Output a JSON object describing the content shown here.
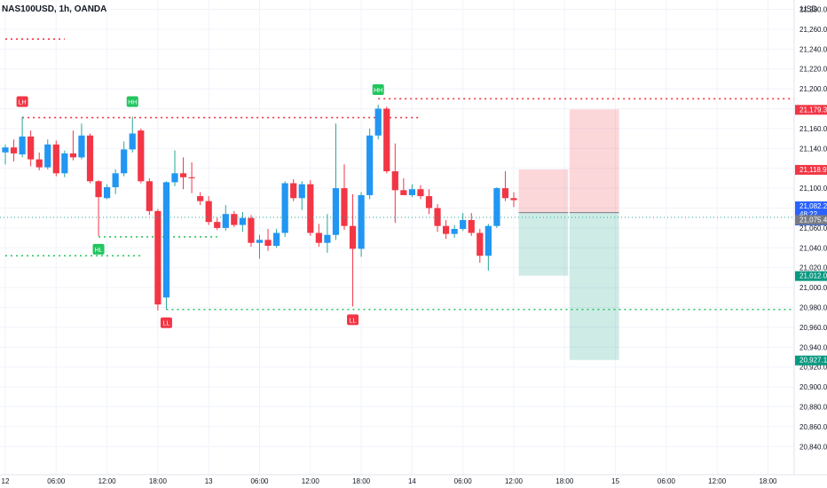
{
  "header": {
    "symbol_text": "NAS100USD, 1h, OANDA"
  },
  "price_axis": {
    "currency": "USD",
    "ticks": [
      "21,280.0",
      "21,260.0",
      "21,240.0",
      "21,220.0",
      "21,200.0",
      "21,180.0",
      "21,160.0",
      "21,140.0",
      "21,120.0",
      "21,100.0",
      "21,080.0",
      "21,060.0",
      "21,040.0",
      "21,020.0",
      "21,000.0",
      "20,980.0",
      "20,960.0",
      "20,940.0",
      "20,920.0",
      "20,900.0",
      "20,880.0",
      "20,860.0",
      "20,840.0"
    ]
  },
  "time_axis": {
    "ticks": [
      {
        "label": "12",
        "bar": 0
      },
      {
        "label": "06:00",
        "bar": 6
      },
      {
        "label": "12:00",
        "bar": 12
      },
      {
        "label": "18:00",
        "bar": 18
      },
      {
        "label": "13",
        "bar": 24
      },
      {
        "label": "06:00",
        "bar": 30
      },
      {
        "label": "12:00",
        "bar": 36
      },
      {
        "label": "18:00",
        "bar": 42
      },
      {
        "label": "14",
        "bar": 48
      },
      {
        "label": "06:00",
        "bar": 54
      },
      {
        "label": "12:00",
        "bar": 60
      },
      {
        "label": "18:00",
        "bar": 66
      },
      {
        "label": "15",
        "bar": 72
      },
      {
        "label": "06:00",
        "bar": 78
      },
      {
        "label": "12:00",
        "bar": 84
      },
      {
        "label": "18:00",
        "bar": 90
      }
    ]
  },
  "price_badges": [
    {
      "text": "21,179.3",
      "price": 21179.3,
      "color": "#f23645",
      "type": "single"
    },
    {
      "text": "21,118.9",
      "price": 21118.9,
      "color": "#f23645",
      "type": "single"
    },
    {
      "text": "21,082.2",
      "sub": "48:22",
      "sub2": "21,075.4",
      "price": 21082.2,
      "color": "#2962ff",
      "type": "current"
    },
    {
      "text": "21,075.4",
      "price": 21068.5,
      "color": "#787b86",
      "type": "single"
    },
    {
      "text": "21,012.0",
      "price": 21012.0,
      "color": "#089981",
      "type": "single"
    },
    {
      "text": "20,927.1",
      "price": 20927.1,
      "color": "#089981",
      "type": "single"
    }
  ],
  "colors": {
    "up": "#26a69a",
    "down": "#f23645",
    "bull_body": "#2196f3",
    "bear_body": "#f23645",
    "grid": "#f0f3fa",
    "axis_text": "#131722"
  },
  "chart_data": {
    "type": "candlestick",
    "symbol": "NAS100USD",
    "interval": "1h",
    "source": "OANDA",
    "candles": [
      {
        "o": 21136,
        "h": 21144,
        "l": 21124,
        "c": 21141
      },
      {
        "o": 21141,
        "h": 21149,
        "l": 21127,
        "c": 21135
      },
      {
        "o": 21134,
        "h": 21172,
        "l": 21131,
        "c": 21152
      },
      {
        "o": 21152,
        "h": 21158,
        "l": 21122,
        "c": 21129
      },
      {
        "o": 21129,
        "h": 21136,
        "l": 21118,
        "c": 21121
      },
      {
        "o": 21121,
        "h": 21149,
        "l": 21119,
        "c": 21144
      },
      {
        "o": 21144,
        "h": 21148,
        "l": 21112,
        "c": 21115
      },
      {
        "o": 21115,
        "h": 21138,
        "l": 21111,
        "c": 21135
      },
      {
        "o": 21135,
        "h": 21158,
        "l": 21128,
        "c": 21131
      },
      {
        "o": 21131,
        "h": 21165,
        "l": 21129,
        "c": 21153
      },
      {
        "o": 21153,
        "h": 21155,
        "l": 21105,
        "c": 21107
      },
      {
        "o": 21107,
        "h": 21108,
        "l": 21052,
        "c": 21091
      },
      {
        "o": 21090,
        "h": 21104,
        "l": 21089,
        "c": 21101
      },
      {
        "o": 21101,
        "h": 21119,
        "l": 21094,
        "c": 21115
      },
      {
        "o": 21115,
        "h": 21147,
        "l": 21112,
        "c": 21139
      },
      {
        "o": 21139,
        "h": 21172,
        "l": 21136,
        "c": 21155
      },
      {
        "o": 21158,
        "h": 21160,
        "l": 21105,
        "c": 21107
      },
      {
        "o": 21107,
        "h": 21110,
        "l": 21073,
        "c": 21077
      },
      {
        "o": 21077,
        "h": 21079,
        "l": 20977,
        "c": 20983
      },
      {
        "o": 20990,
        "h": 21107,
        "l": 20978,
        "c": 21106
      },
      {
        "o": 21106,
        "h": 21138,
        "l": 21102,
        "c": 21115
      },
      {
        "o": 21115,
        "h": 21131,
        "l": 21099,
        "c": 21111
      },
      {
        "o": 21111,
        "h": 21126,
        "l": 21095,
        "c": 21110
      },
      {
        "o": 21092,
        "h": 21096,
        "l": 21083,
        "c": 21087
      },
      {
        "o": 21087,
        "h": 21092,
        "l": 21063,
        "c": 21066
      },
      {
        "o": 21066,
        "h": 21070,
        "l": 21058,
        "c": 21060
      },
      {
        "o": 21060,
        "h": 21083,
        "l": 21057,
        "c": 21074
      },
      {
        "o": 21074,
        "h": 21077,
        "l": 21061,
        "c": 21063
      },
      {
        "o": 21063,
        "h": 21076,
        "l": 21056,
        "c": 21070
      },
      {
        "o": 21070,
        "h": 21073,
        "l": 21041,
        "c": 21045
      },
      {
        "o": 21045,
        "h": 21053,
        "l": 21029,
        "c": 21048
      },
      {
        "o": 21048,
        "h": 21059,
        "l": 21037,
        "c": 21042
      },
      {
        "o": 21042,
        "h": 21059,
        "l": 21040,
        "c": 21055
      },
      {
        "o": 21055,
        "h": 21107,
        "l": 21051,
        "c": 21105
      },
      {
        "o": 21105,
        "h": 21109,
        "l": 21087,
        "c": 21090
      },
      {
        "o": 21090,
        "h": 21107,
        "l": 21078,
        "c": 21104
      },
      {
        "o": 21104,
        "h": 21108,
        "l": 21052,
        "c": 21055
      },
      {
        "o": 21055,
        "h": 21064,
        "l": 21041,
        "c": 21045
      },
      {
        "o": 21045,
        "h": 21074,
        "l": 21035,
        "c": 21053
      },
      {
        "o": 21053,
        "h": 21165,
        "l": 21048,
        "c": 21100
      },
      {
        "o": 21100,
        "h": 21124,
        "l": 21058,
        "c": 21062
      },
      {
        "o": 21062,
        "h": 21094,
        "l": 20981,
        "c": 21039
      },
      {
        "o": 21039,
        "h": 21096,
        "l": 21031,
        "c": 21093
      },
      {
        "o": 21093,
        "h": 21160,
        "l": 21089,
        "c": 21153
      },
      {
        "o": 21153,
        "h": 21184,
        "l": 21149,
        "c": 21180
      },
      {
        "o": 21180,
        "h": 21182,
        "l": 21115,
        "c": 21117
      },
      {
        "o": 21117,
        "h": 21145,
        "l": 21065,
        "c": 21098
      },
      {
        "o": 21098,
        "h": 21110,
        "l": 21094,
        "c": 21093
      },
      {
        "o": 21093,
        "h": 21104,
        "l": 21091,
        "c": 21099
      },
      {
        "o": 21099,
        "h": 21103,
        "l": 21089,
        "c": 21092
      },
      {
        "o": 21092,
        "h": 21099,
        "l": 21074,
        "c": 21080
      },
      {
        "o": 21080,
        "h": 21084,
        "l": 21056,
        "c": 21062
      },
      {
        "o": 21062,
        "h": 21068,
        "l": 21049,
        "c": 21054
      },
      {
        "o": 21054,
        "h": 21063,
        "l": 21050,
        "c": 21059
      },
      {
        "o": 21059,
        "h": 21075,
        "l": 21057,
        "c": 21068
      },
      {
        "o": 21068,
        "h": 21075,
        "l": 21052,
        "c": 21055
      },
      {
        "o": 21055,
        "h": 21059,
        "l": 21025,
        "c": 21032
      },
      {
        "o": 21032,
        "h": 21064,
        "l": 21017,
        "c": 21062
      },
      {
        "o": 21062,
        "h": 21101,
        "l": 21060,
        "c": 21100
      },
      {
        "o": 21100,
        "h": 21117,
        "l": 21087,
        "c": 21090
      },
      {
        "o": 21090,
        "h": 21096,
        "l": 21081,
        "c": 21088
      }
    ],
    "swing_labels": [
      {
        "text": "LH",
        "bar": 2,
        "price": 21172,
        "pos": "above",
        "color": "#f23645"
      },
      {
        "text": "HH",
        "bar": 15,
        "price": 21172,
        "pos": "above",
        "color": "#22c55e"
      },
      {
        "text": "HL",
        "bar": 11,
        "price": 21052,
        "pos": "below",
        "color": "#22c55e"
      },
      {
        "text": "LL",
        "bar": 19,
        "price": 20978,
        "pos": "below",
        "color": "#f23645"
      },
      {
        "text": "LL",
        "bar": 41,
        "price": 20981,
        "pos": "below",
        "color": "#f23645"
      },
      {
        "text": "HH",
        "bar": 44,
        "price": 21184,
        "pos": "above",
        "color": "#22c55e"
      }
    ],
    "levels": [
      {
        "price": 21250,
        "from_bar": 0,
        "to_bar": 7,
        "color": "#f23645"
      },
      {
        "price": 21171,
        "from_bar": 2,
        "to_bar": 49,
        "color": "#f23645"
      },
      {
        "price": 21190,
        "from_bar": 44,
        "to_bar": 95,
        "color": "#f23645"
      },
      {
        "price": 21051,
        "from_bar": 11,
        "to_bar": 25,
        "color": "#22c55e"
      },
      {
        "price": 21032,
        "from_bar": 0,
        "to_bar": 16,
        "color": "#22c55e"
      },
      {
        "price": 20978,
        "from_bar": 19,
        "to_bar": 95,
        "color": "#22c55e"
      }
    ],
    "positions": [
      {
        "from_bar": 61,
        "to_bar": 66,
        "entry": 21075.4,
        "stop": 21118.9,
        "target": 21012.0
      },
      {
        "from_bar": 67,
        "to_bar": 72,
        "entry": 21075.4,
        "stop": 21179.3,
        "target": 20927.1
      }
    ],
    "ylim": [
      20832,
      21287
    ]
  }
}
